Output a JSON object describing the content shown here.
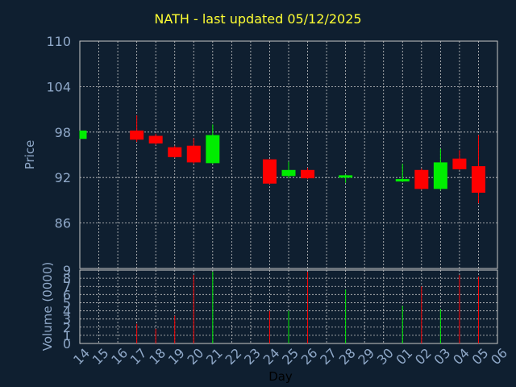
{
  "title": "NATH - last updated 05/12/2025",
  "colors": {
    "background": "#0f1f30",
    "title": "#ffff33",
    "axis_text": "#8fa8c8",
    "grid": "#c8c8c8",
    "up": "#00ee00",
    "down": "#ff0000"
  },
  "chart_data": [
    {
      "type": "candlestick",
      "ylabel": "Price",
      "ylim": [
        80,
        110
      ],
      "yticks": [
        "110",
        "104",
        "98",
        "92",
        "86"
      ],
      "ytick_values": [
        110,
        104,
        98,
        92,
        86
      ],
      "grid": true,
      "x": [
        "14",
        "15",
        "16",
        "17",
        "18",
        "19",
        "20",
        "21",
        "22",
        "23",
        "24",
        "25",
        "26",
        "27",
        "28",
        "29",
        "30",
        "01",
        "02",
        "03",
        "04",
        "05",
        "06"
      ],
      "candles": [
        {
          "day": "14",
          "open": 97.1,
          "high": 98.2,
          "low": 97.1,
          "close": 98.2,
          "direction": "up"
        },
        {
          "day": "17",
          "open": 98.2,
          "high": 100.2,
          "low": 96.7,
          "close": 97.0,
          "direction": "down"
        },
        {
          "day": "18",
          "open": 97.5,
          "high": 97.8,
          "low": 96.3,
          "close": 96.5,
          "direction": "down"
        },
        {
          "day": "19",
          "open": 96.0,
          "high": 96.2,
          "low": 94.6,
          "close": 94.7,
          "direction": "down"
        },
        {
          "day": "20",
          "open": 96.2,
          "high": 97.2,
          "low": 93.8,
          "close": 94.0,
          "direction": "down"
        },
        {
          "day": "21",
          "open": 93.9,
          "high": 99.0,
          "low": 93.8,
          "close": 97.6,
          "direction": "up"
        },
        {
          "day": "24",
          "open": 94.4,
          "high": 94.4,
          "low": 91.1,
          "close": 91.2,
          "direction": "down"
        },
        {
          "day": "25",
          "open": 92.2,
          "high": 94.1,
          "low": 91.9,
          "close": 93.0,
          "direction": "up"
        },
        {
          "day": "26",
          "open": 93.0,
          "high": 93.3,
          "low": 91.8,
          "close": 91.9,
          "direction": "down"
        },
        {
          "day": "28",
          "open": 92.0,
          "high": 92.4,
          "low": 91.3,
          "close": 92.3,
          "direction": "up"
        },
        {
          "day": "01",
          "open": 91.5,
          "high": 93.8,
          "low": 91.4,
          "close": 91.8,
          "direction": "up"
        },
        {
          "day": "02",
          "open": 93.0,
          "high": 93.2,
          "low": 90.4,
          "close": 90.5,
          "direction": "down"
        },
        {
          "day": "03",
          "open": 90.5,
          "high": 95.8,
          "low": 90.3,
          "close": 94.0,
          "direction": "up"
        },
        {
          "day": "04",
          "open": 94.5,
          "high": 95.6,
          "low": 93.0,
          "close": 93.1,
          "direction": "down"
        },
        {
          "day": "05",
          "open": 93.5,
          "high": 97.6,
          "low": 88.6,
          "close": 90.0,
          "direction": "down"
        }
      ]
    },
    {
      "type": "bar",
      "ylabel": "Volume (0000)",
      "xlabel": "Day",
      "ylim": [
        0,
        9
      ],
      "yticks": [
        "9",
        "8",
        "7",
        "6",
        "5",
        "4",
        "3",
        "2",
        "1",
        "0"
      ],
      "ytick_values": [
        9,
        8,
        7,
        6,
        5,
        4,
        3,
        2,
        1,
        0
      ],
      "grid": true,
      "x": [
        "14",
        "15",
        "16",
        "17",
        "18",
        "19",
        "20",
        "21",
        "22",
        "23",
        "24",
        "25",
        "26",
        "27",
        "28",
        "29",
        "30",
        "01",
        "02",
        "03",
        "04",
        "05",
        "06"
      ],
      "bars": [
        {
          "day": "17",
          "value": 2.4,
          "direction": "down"
        },
        {
          "day": "18",
          "value": 1.8,
          "direction": "down"
        },
        {
          "day": "19",
          "value": 3.4,
          "direction": "down"
        },
        {
          "day": "20",
          "value": 8.4,
          "direction": "down"
        },
        {
          "day": "21",
          "value": 8.8,
          "direction": "up"
        },
        {
          "day": "24",
          "value": 4.0,
          "direction": "down"
        },
        {
          "day": "25",
          "value": 4.0,
          "direction": "up"
        },
        {
          "day": "26",
          "value": 8.8,
          "direction": "down"
        },
        {
          "day": "28",
          "value": 6.6,
          "direction": "up"
        },
        {
          "day": "01",
          "value": 4.6,
          "direction": "up"
        },
        {
          "day": "02",
          "value": 7.0,
          "direction": "down"
        },
        {
          "day": "03",
          "value": 4.2,
          "direction": "up"
        },
        {
          "day": "04",
          "value": 8.4,
          "direction": "down"
        },
        {
          "day": "05",
          "value": 8.2,
          "direction": "down"
        }
      ]
    }
  ]
}
